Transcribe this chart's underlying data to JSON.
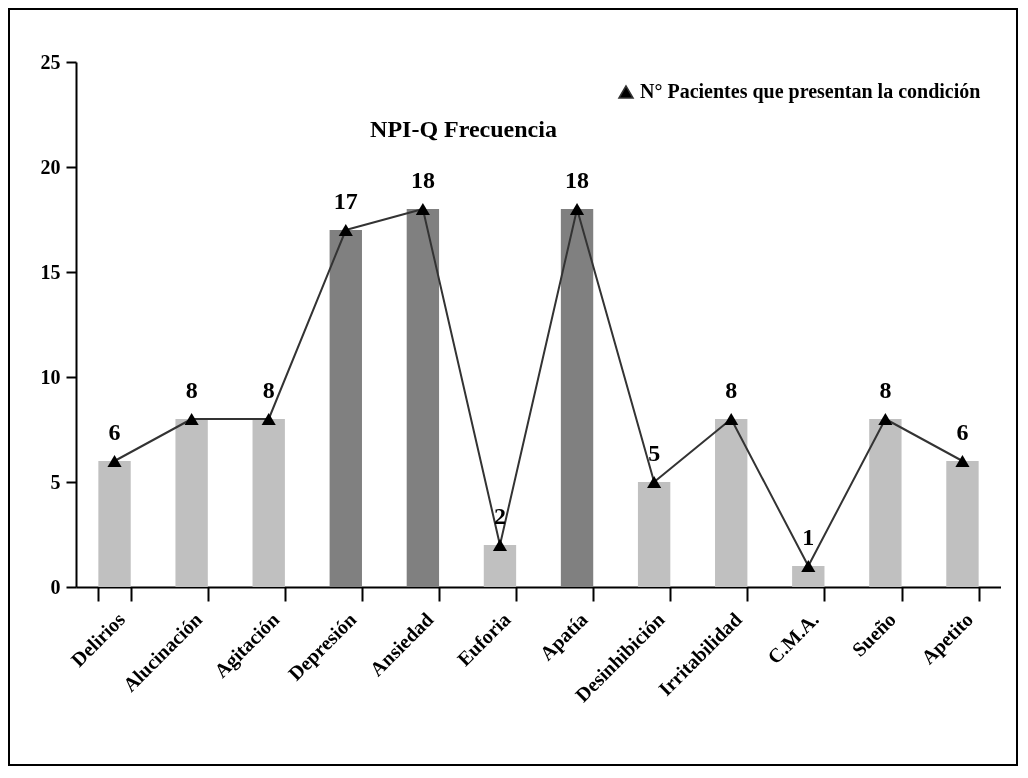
{
  "chart_data": {
    "type": "bar",
    "title": "NPI-Q Frecuencia",
    "categories": [
      "Delirios",
      "Alucinación",
      "Agitación",
      "Depresión",
      "Ansiedad",
      "Euforia",
      "Apatía",
      "Desinhibición",
      "Irritabilidad",
      "C.M.A.",
      "Sueño",
      "Apetito"
    ],
    "series": [
      {
        "colors": [
          "#c0c0c0",
          "#c0c0c0",
          "#c0c0c0",
          "#808080",
          "#808080",
          "#c0c0c0",
          "#808080",
          "#c0c0c0",
          "#c0c0c0",
          "#c0c0c0",
          "#c0c0c0",
          "#c0c0c0"
        ],
        "values": [
          6,
          8,
          8,
          17,
          18,
          2,
          18,
          5,
          8,
          1,
          8,
          6
        ]
      },
      {
        "type": "line",
        "name": "N° Pacientes que presentan la condición",
        "color": "#333333",
        "marker": "triangle",
        "values": [
          6,
          8,
          8,
          17,
          18,
          2,
          18,
          5,
          8,
          1,
          8,
          6
        ],
        "value_labels": [
          "6",
          "8",
          "8",
          "17",
          "18",
          "2",
          "18",
          "5",
          "8",
          "1",
          "8",
          "6"
        ]
      }
    ],
    "ylim": [
      0,
      25
    ],
    "yticks": [
      0,
      5,
      10,
      15,
      20,
      25
    ],
    "legend": "top right",
    "grid": false
  }
}
